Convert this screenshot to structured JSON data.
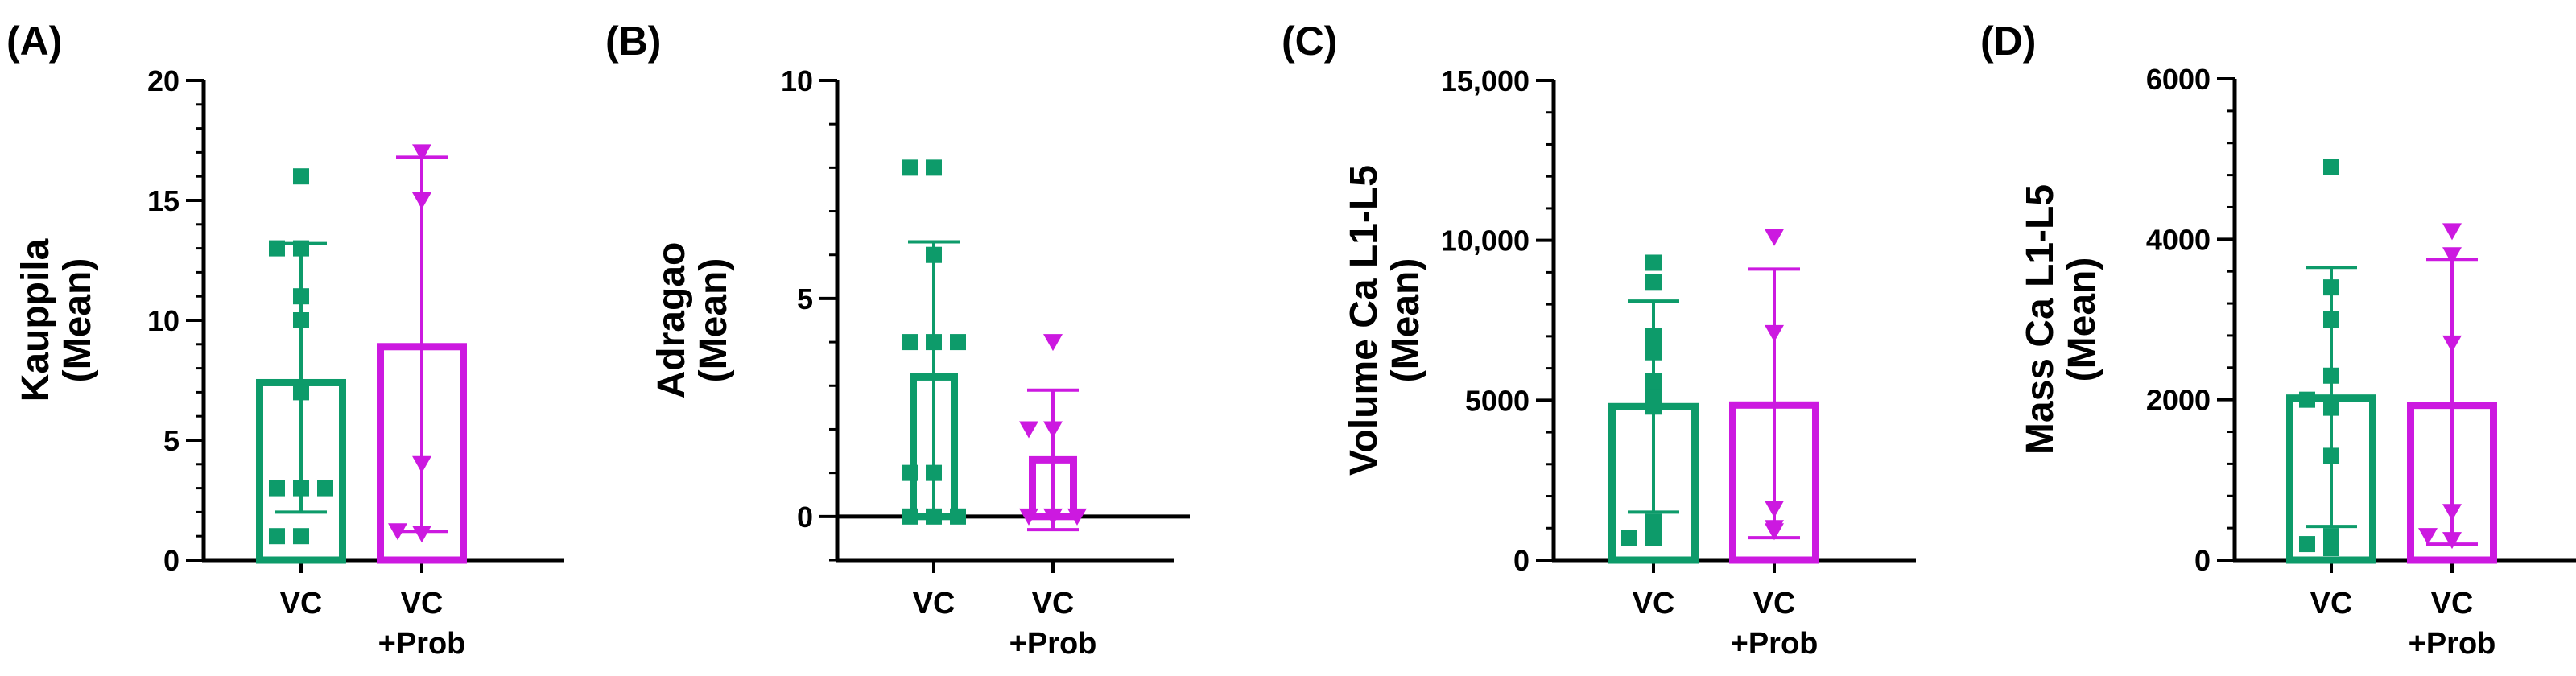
{
  "colors": {
    "vc": "#0d9b6a",
    "vc_prob": "#cc19e0",
    "axis": "#000000"
  },
  "chart_data": [
    {
      "type": "bar",
      "panel": "(A)",
      "ylabel": [
        "Kauppila",
        "(Mean)"
      ],
      "ylim": [
        0,
        20
      ],
      "yticks": [
        0,
        5,
        10,
        15,
        20
      ],
      "ytick_labels": [
        "0",
        "5",
        "10",
        "15",
        "20"
      ],
      "minor_step": 1,
      "zero_line": false,
      "categories": [
        [
          "VC"
        ],
        [
          "VC",
          "+Prob"
        ]
      ],
      "series": [
        {
          "name": "VC",
          "mean": 7.4,
          "err_low": 2.0,
          "err_high": 13.2,
          "points": [
            1,
            1,
            3,
            3,
            3,
            7,
            10,
            11,
            13,
            13,
            16
          ],
          "marker": "square"
        },
        {
          "name": "VC+Prob",
          "mean": 8.9,
          "err_low": 1.2,
          "err_high": 16.8,
          "points": [
            1.1,
            1.2,
            4,
            15,
            17
          ],
          "marker": "triangle"
        }
      ]
    },
    {
      "type": "bar",
      "panel": "(B)",
      "ylabel": [
        "Adragao",
        "(Mean)"
      ],
      "ylim": [
        -1,
        10
      ],
      "yticks": [
        0,
        5,
        10
      ],
      "ytick_labels": [
        "0",
        "5",
        "10"
      ],
      "minor_step": 1,
      "zero_line": true,
      "categories": [
        [
          "VC"
        ],
        [
          "VC",
          "+Prob"
        ]
      ],
      "series": [
        {
          "name": "VC",
          "mean": 3.2,
          "err_low": 0.05,
          "err_high": 6.3,
          "points": [
            0,
            0,
            0,
            1,
            1,
            4,
            4,
            4,
            6,
            8,
            8
          ],
          "marker": "square"
        },
        {
          "name": "VC+Prob",
          "mean": 1.3,
          "err_low": -0.3,
          "err_high": 2.9,
          "points": [
            0,
            0,
            0,
            2,
            2,
            4
          ],
          "marker": "triangle"
        }
      ]
    },
    {
      "type": "bar",
      "panel": "(C)",
      "ylabel": [
        "Volume Ca L1-L5",
        "(Mean)"
      ],
      "ylim": [
        0,
        15000
      ],
      "yticks": [
        0,
        5000,
        10000,
        15000
      ],
      "ytick_labels": [
        "0",
        "5000",
        "10,000",
        "15,000"
      ],
      "minor_step": 1000,
      "zero_line": false,
      "categories": [
        [
          "VC"
        ],
        [
          "VC",
          "+Prob"
        ]
      ],
      "series": [
        {
          "name": "VC",
          "mean": 4800,
          "err_low": 1500,
          "err_high": 8100,
          "points": [
            700,
            700,
            1200,
            4800,
            5200,
            5600,
            6500,
            7000,
            8700,
            9300
          ],
          "marker": "square"
        },
        {
          "name": "VC+Prob",
          "mean": 4850,
          "err_low": 700,
          "err_high": 9100,
          "points": [
            900,
            1000,
            1600,
            7100,
            10100
          ],
          "marker": "triangle"
        }
      ]
    },
    {
      "type": "bar",
      "panel": "(D)",
      "ylabel": [
        "Mass Ca L1-L5",
        "(Mean)"
      ],
      "ylim": [
        0,
        6000
      ],
      "yticks": [
        0,
        2000,
        4000,
        6000
      ],
      "ytick_labels": [
        "0",
        "2000",
        "4000",
        "6000"
      ],
      "minor_step": 400,
      "zero_line": false,
      "categories": [
        [
          "VC"
        ],
        [
          "VC",
          "+Prob"
        ]
      ],
      "series": [
        {
          "name": "VC",
          "mean": 2020,
          "err_low": 420,
          "err_high": 3650,
          "points": [
            150,
            200,
            300,
            1300,
            1900,
            2000,
            2300,
            3000,
            3400,
            4900
          ],
          "marker": "square"
        },
        {
          "name": "VC+Prob",
          "mean": 1930,
          "err_low": 200,
          "err_high": 3750,
          "points": [
            250,
            300,
            600,
            2700,
            3800,
            4100
          ],
          "marker": "triangle"
        }
      ]
    }
  ]
}
